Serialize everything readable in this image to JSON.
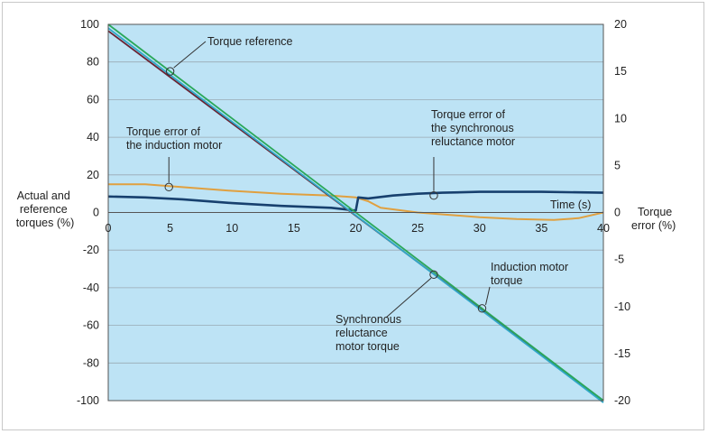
{
  "chart_data": {
    "type": "line",
    "x": {
      "label": "Time (s)",
      "min": 0,
      "max": 40,
      "ticks": [
        0,
        5,
        10,
        15,
        20,
        25,
        30,
        35,
        40
      ]
    },
    "y_left": {
      "label_lines": [
        "Actual and",
        "reference",
        "torques (%)"
      ],
      "min": -100,
      "max": 100,
      "ticks": [
        100,
        80,
        60,
        40,
        20,
        0,
        -20,
        -40,
        -60,
        -80,
        -100
      ]
    },
    "y_right": {
      "label_lines": [
        "Torque",
        "error (%)"
      ],
      "min": -20,
      "max": 20,
      "ticks": [
        20,
        15,
        10,
        5,
        0,
        -5,
        -10,
        -15,
        -20
      ]
    },
    "background_color": "#bde3f5",
    "grid": "horizontal",
    "series": [
      {
        "name": "Torque reference",
        "axis": "left",
        "color": "#2aa85a",
        "points": [
          [
            0,
            100
          ],
          [
            40,
            -100
          ]
        ]
      },
      {
        "name": "Induction motor torque",
        "axis": "left",
        "color": "#6a2333",
        "points": [
          [
            0,
            96.5
          ],
          [
            40,
            -100
          ]
        ]
      },
      {
        "name": "Synchronous reluctance motor torque",
        "axis": "left",
        "color": "#2fa8c8",
        "points": [
          [
            0,
            98
          ],
          [
            40,
            -101
          ]
        ]
      },
      {
        "name": "Torque error of the induction motor",
        "axis": "right",
        "color": "#e0a040",
        "points": [
          [
            0,
            3.0
          ],
          [
            3,
            3.0
          ],
          [
            6,
            2.7
          ],
          [
            10,
            2.3
          ],
          [
            14,
            2.0
          ],
          [
            18,
            1.8
          ],
          [
            20,
            1.6
          ],
          [
            21,
            1.2
          ],
          [
            22,
            0.5
          ],
          [
            25,
            0.0
          ],
          [
            28,
            -0.3
          ],
          [
            30,
            -0.5
          ],
          [
            33,
            -0.7
          ],
          [
            36,
            -0.8
          ],
          [
            38,
            -0.6
          ],
          [
            40,
            0.0
          ]
        ]
      },
      {
        "name": "Torque error of the synchronous reluctance motor",
        "axis": "right",
        "color": "#17406e",
        "points": [
          [
            0,
            1.7
          ],
          [
            3,
            1.6
          ],
          [
            6,
            1.4
          ],
          [
            10,
            1.0
          ],
          [
            14,
            0.7
          ],
          [
            18,
            0.5
          ],
          [
            20,
            0.2
          ],
          [
            20.2,
            1.6
          ],
          [
            21,
            1.5
          ],
          [
            23,
            1.8
          ],
          [
            25,
            2.0
          ],
          [
            27,
            2.1
          ],
          [
            30,
            2.2
          ],
          [
            35,
            2.2
          ],
          [
            40,
            2.1
          ]
        ]
      }
    ],
    "annotations": [
      {
        "lines": [
          "Torque reference"
        ]
      },
      {
        "lines": [
          "Torque error of",
          "the induction motor"
        ]
      },
      {
        "lines": [
          "Torque error of",
          "the synchronous",
          "reluctance motor"
        ]
      },
      {
        "lines": [
          "Induction motor",
          "torque"
        ]
      },
      {
        "lines": [
          "Synchronous",
          "reluctance",
          "motor torque"
        ]
      }
    ]
  }
}
